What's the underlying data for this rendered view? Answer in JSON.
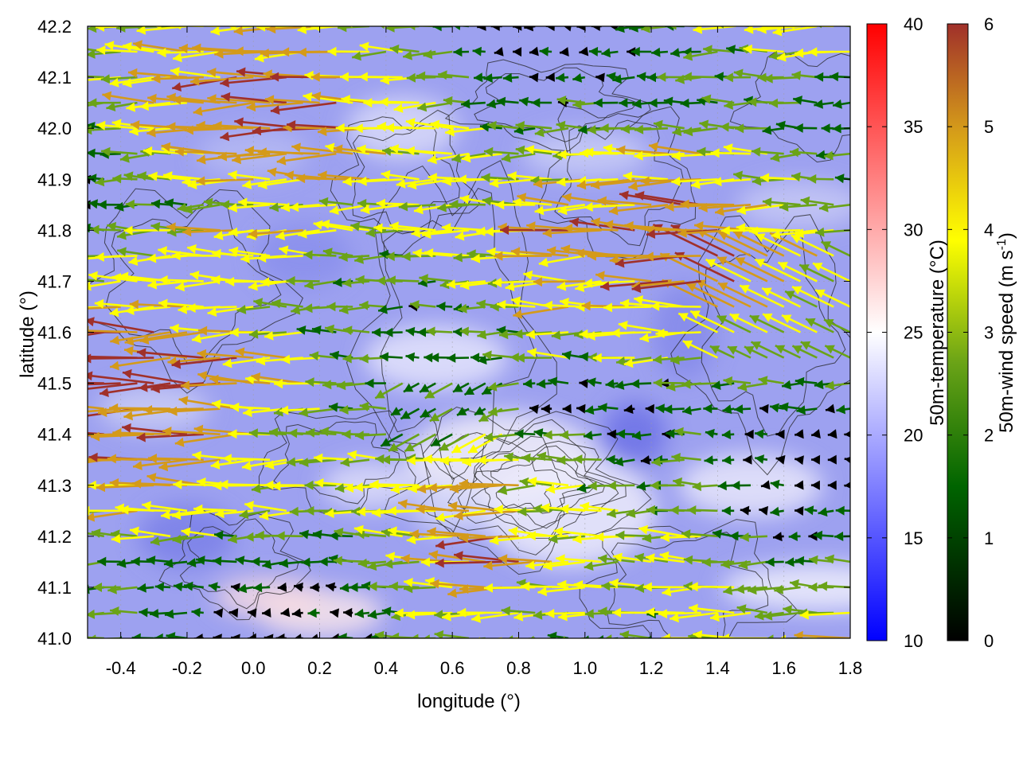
{
  "chart_data": {
    "type": "vector-field",
    "xlabel": "longitude (°)",
    "ylabel": "latitude (°)",
    "xlim": [
      -0.5,
      1.8
    ],
    "ylim": [
      41.0,
      42.2
    ],
    "x_ticks": [
      "-0.4",
      "-0.2",
      "0.0",
      "0.2",
      "0.4",
      "0.6",
      "0.8",
      "1.0",
      "1.2",
      "1.4",
      "1.6",
      "1.8"
    ],
    "y_ticks": [
      "41.0",
      "41.1",
      "41.2",
      "41.3",
      "41.4",
      "41.5",
      "41.6",
      "41.7",
      "41.8",
      "41.9",
      "42.0",
      "42.1",
      "42.2"
    ],
    "grid": true,
    "background_field": {
      "name": "50m-temperature (°C)",
      "unit": "°C",
      "range": [
        10,
        40
      ],
      "ticks": [
        "10",
        "15",
        "20",
        "25",
        "30",
        "35",
        "40"
      ],
      "colors": [
        "#0000ff",
        "#ffffff",
        "#ff0000"
      ],
      "typical_value_range": [
        15,
        24
      ]
    },
    "vector_field": {
      "name": "50m-wind speed (m s-1)",
      "label_main": "50m-wind speed (m s",
      "label_sup": "-1",
      "label_end": ")",
      "unit": "m s-1",
      "range": [
        0,
        6
      ],
      "ticks": [
        "0",
        "1",
        "2",
        "3",
        "4",
        "5",
        "6"
      ],
      "colors": [
        "#000000",
        "#006400",
        "#6aa317",
        "#ffff00",
        "#d49a1a",
        "#a0302a"
      ],
      "dominant_direction": "westward (from east)",
      "rows_latitude": [
        41.0,
        41.05,
        41.1,
        41.15,
        41.2,
        41.25,
        41.3,
        41.35,
        41.4,
        41.45,
        41.5,
        41.55,
        41.6,
        41.65,
        41.7,
        41.75,
        41.8,
        41.85,
        41.9,
        41.95,
        42.0,
        42.05,
        42.1,
        42.15,
        42.2
      ],
      "columns_longitude": [
        -0.5,
        -0.45,
        -0.4,
        -0.35,
        -0.3,
        -0.25,
        -0.2,
        -0.15,
        -0.1,
        -0.05,
        0.0,
        0.05,
        0.1,
        0.15,
        0.2,
        0.25,
        0.3,
        0.35,
        0.4,
        0.45,
        0.5,
        0.55,
        0.6,
        0.65,
        0.7,
        0.75,
        0.8,
        0.85,
        0.9,
        0.95,
        1.0,
        1.05,
        1.1,
        1.15,
        1.2,
        1.25,
        1.3,
        1.35,
        1.4,
        1.45,
        1.5,
        1.55,
        1.6,
        1.65,
        1.7,
        1.75,
        1.8
      ]
    },
    "contours": {
      "description": "terrain elevation isolines",
      "color": "#000000"
    }
  }
}
